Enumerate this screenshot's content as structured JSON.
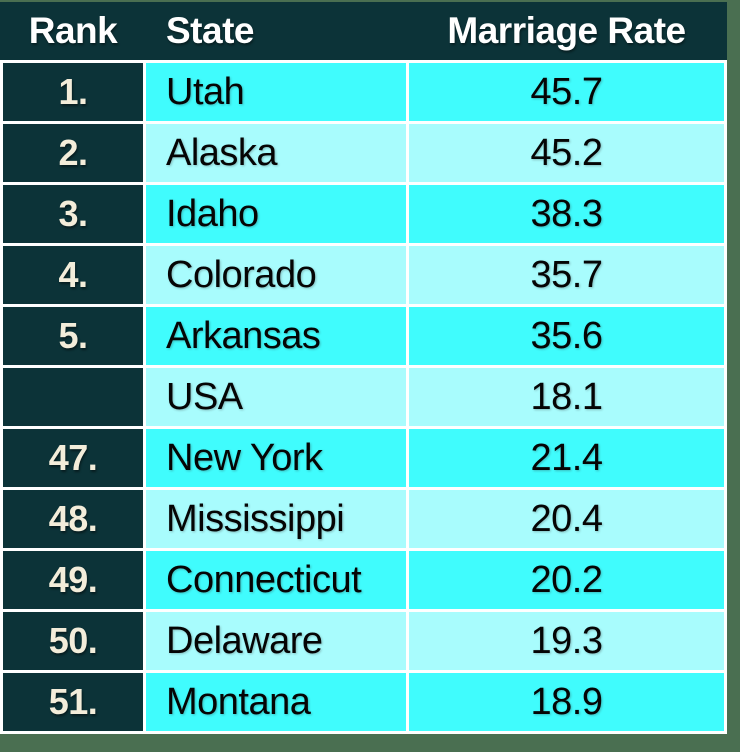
{
  "table": {
    "columns": [
      "Rank",
      "State",
      "Marriage Rate"
    ],
    "rows": [
      {
        "rank": "1.",
        "state": "Utah",
        "rate": "45.7"
      },
      {
        "rank": "2.",
        "state": "Alaska",
        "rate": "45.2"
      },
      {
        "rank": "3.",
        "state": "Idaho",
        "rate": "38.3"
      },
      {
        "rank": "4.",
        "state": "Colorado",
        "rate": "35.7"
      },
      {
        "rank": "5.",
        "state": "Arkansas",
        "rate": "35.6"
      },
      {
        "rank": "",
        "state": "USA",
        "rate": "18.1"
      },
      {
        "rank": "47.",
        "state": "New York",
        "rate": "21.4"
      },
      {
        "rank": "48.",
        "state": "Mississippi",
        "rate": "20.4"
      },
      {
        "rank": "49.",
        "state": "Connecticut",
        "rate": "20.2"
      },
      {
        "rank": "50.",
        "state": "Delaware",
        "rate": "19.3"
      },
      {
        "rank": "51.",
        "state": "Montana",
        "rate": "18.9"
      }
    ]
  },
  "chart_data": {
    "type": "table",
    "columns": [
      "Rank",
      "State",
      "Marriage Rate"
    ],
    "rows": [
      [
        "1.",
        "Utah",
        45.7
      ],
      [
        "2.",
        "Alaska",
        45.2
      ],
      [
        "3.",
        "Idaho",
        38.3
      ],
      [
        "4.",
        "Colorado",
        35.7
      ],
      [
        "5.",
        "Arkansas",
        35.6
      ],
      [
        "",
        "USA",
        18.1
      ],
      [
        "47.",
        "New York",
        21.4
      ],
      [
        "48.",
        "Mississippi",
        20.4
      ],
      [
        "49.",
        "Connecticut",
        20.2
      ],
      [
        "50.",
        "Delaware",
        19.3
      ],
      [
        "51.",
        "Montana",
        18.9
      ]
    ],
    "layout_hints": {
      "highlighted_reference_row": "USA",
      "alternating_row_colors": true
    }
  },
  "colors": {
    "header_bg": "#0c3338",
    "row_bright": "#40fcfd",
    "row_pale": "#a8fcfd",
    "grid_line": "#ffffff",
    "border_green": "#4a6f51",
    "rank_text": "#f3edda",
    "header_text": "#ffffff",
    "data_text": "#050505"
  }
}
